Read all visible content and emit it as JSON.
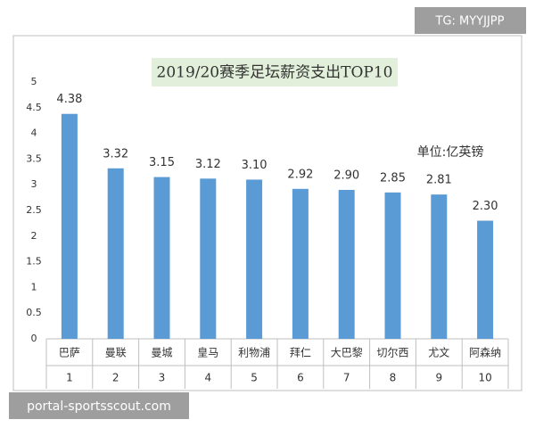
{
  "chart_data": {
    "type": "bar",
    "title": "2019/20赛季足坛薪资支出TOP10",
    "unit_label": "单位:亿英镑",
    "categories": [
      "巴萨",
      "曼联",
      "曼城",
      "皇马",
      "利物浦",
      "拜仁",
      "大巴黎",
      "切尔西",
      "尤文",
      "阿森纳"
    ],
    "category_numbers": [
      "1",
      "2",
      "3",
      "4",
      "5",
      "6",
      "7",
      "8",
      "9",
      "10"
    ],
    "values": [
      4.38,
      3.32,
      3.15,
      3.12,
      3.1,
      2.92,
      2.9,
      2.85,
      2.81,
      2.3
    ],
    "value_labels": [
      "4.38",
      "3.32",
      "3.15",
      "3.12",
      "3.10",
      "2.92",
      "2.90",
      "2.85",
      "2.81",
      "2.30"
    ],
    "color": "#5b9bd5",
    "ylim": [
      0,
      5
    ],
    "yticks": [
      0,
      0.5,
      1,
      1.5,
      2,
      2.5,
      3,
      3.5,
      4,
      4.5,
      5
    ],
    "grid": false
  },
  "watermark_top": "TG: MYYJJPP",
  "watermark_bottom": "portal-sportsscout.com"
}
